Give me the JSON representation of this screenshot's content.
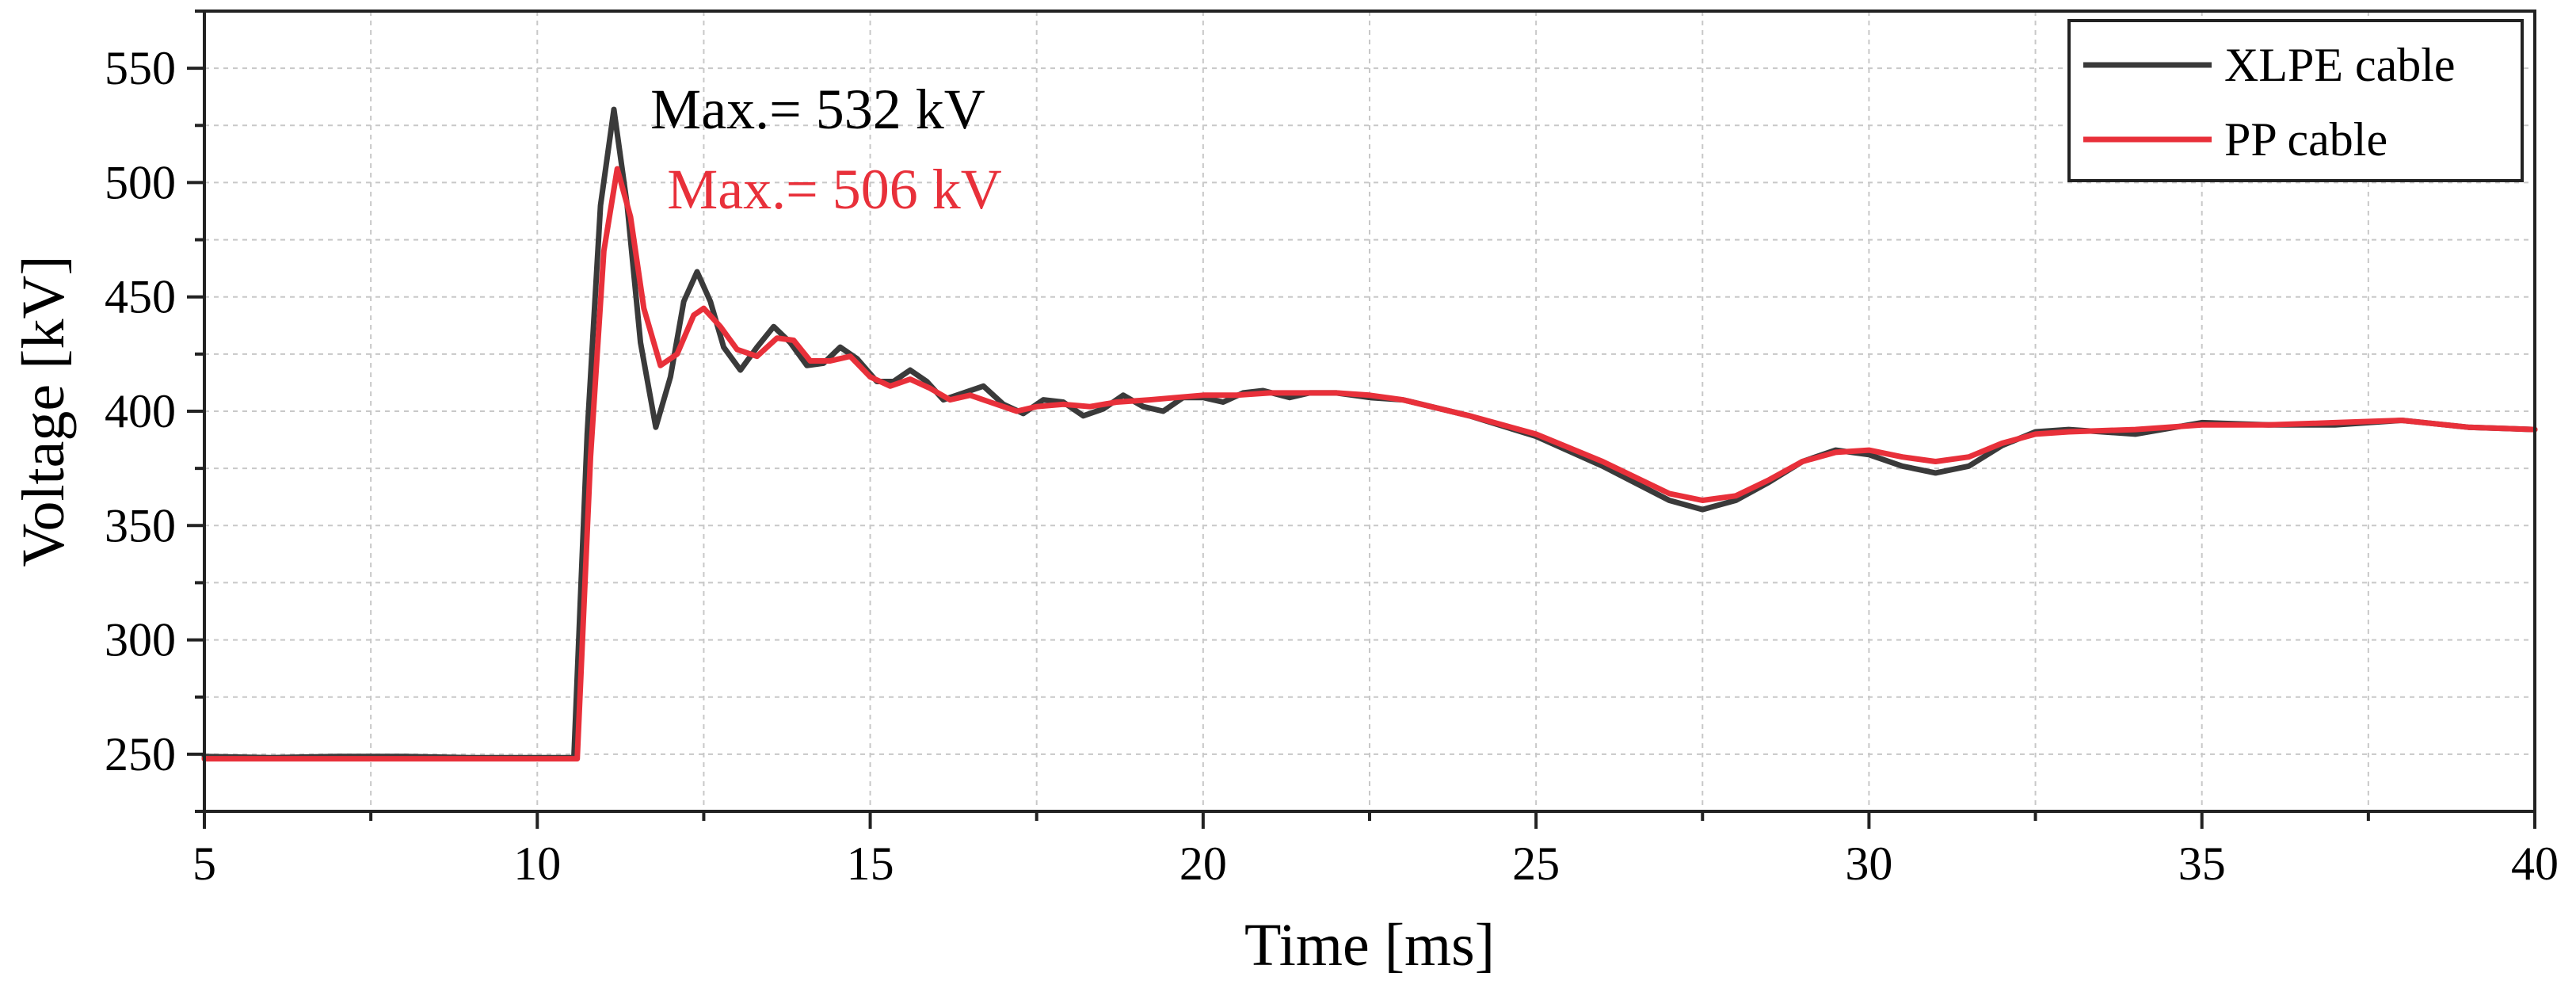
{
  "chart_data": {
    "type": "line",
    "xlabel": "Time [ms]",
    "ylabel": "Voltage [kV]",
    "xlim": [
      5,
      40
    ],
    "ylim": [
      225,
      575
    ],
    "xticks": [
      5,
      10,
      15,
      20,
      25,
      30,
      35,
      40
    ],
    "yticks": [
      250,
      300,
      350,
      400,
      450,
      500,
      550
    ],
    "xminor_step": 2.5,
    "yminor_step": 25,
    "grid": true,
    "legend": "top-right",
    "series": [
      {
        "name": "XLPE cable",
        "color": "#3a3a3a",
        "points": [
          [
            5,
            249
          ],
          [
            6,
            248.5
          ],
          [
            7,
            249
          ],
          [
            8,
            249
          ],
          [
            9,
            248.5
          ],
          [
            10,
            248.5
          ],
          [
            10.55,
            248.5
          ],
          [
            10.75,
            390
          ],
          [
            10.95,
            490
          ],
          [
            11.15,
            532
          ],
          [
            11.35,
            490
          ],
          [
            11.55,
            430
          ],
          [
            11.78,
            393
          ],
          [
            12.0,
            415
          ],
          [
            12.2,
            448
          ],
          [
            12.4,
            461
          ],
          [
            12.6,
            448
          ],
          [
            12.8,
            428
          ],
          [
            13.05,
            418
          ],
          [
            13.3,
            428
          ],
          [
            13.55,
            437
          ],
          [
            13.8,
            430
          ],
          [
            14.05,
            420
          ],
          [
            14.3,
            421
          ],
          [
            14.55,
            428
          ],
          [
            14.8,
            423
          ],
          [
            15.1,
            413
          ],
          [
            15.35,
            413
          ],
          [
            15.6,
            418
          ],
          [
            15.85,
            413
          ],
          [
            16.1,
            405
          ],
          [
            16.4,
            408
          ],
          [
            16.7,
            411
          ],
          [
            17.0,
            403
          ],
          [
            17.3,
            399
          ],
          [
            17.6,
            405
          ],
          [
            17.9,
            404
          ],
          [
            18.2,
            398
          ],
          [
            18.5,
            401
          ],
          [
            18.8,
            407
          ],
          [
            19.1,
            402
          ],
          [
            19.4,
            400
          ],
          [
            19.7,
            406
          ],
          [
            20.0,
            406
          ],
          [
            20.3,
            404
          ],
          [
            20.6,
            408
          ],
          [
            20.9,
            409
          ],
          [
            21.3,
            406
          ],
          [
            21.6,
            408
          ],
          [
            22.0,
            408
          ],
          [
            22.5,
            406
          ],
          [
            23.0,
            405
          ],
          [
            24.0,
            398
          ],
          [
            25.0,
            389
          ],
          [
            26.0,
            376
          ],
          [
            27.0,
            361
          ],
          [
            27.5,
            357
          ],
          [
            28.0,
            361
          ],
          [
            28.5,
            369
          ],
          [
            29.0,
            378
          ],
          [
            29.5,
            383
          ],
          [
            30.0,
            381
          ],
          [
            30.5,
            376
          ],
          [
            31.0,
            373
          ],
          [
            31.5,
            376
          ],
          [
            32.0,
            385
          ],
          [
            32.5,
            391
          ],
          [
            33.0,
            392
          ],
          [
            34.0,
            390
          ],
          [
            35.0,
            395
          ],
          [
            36.0,
            394
          ],
          [
            37.0,
            394
          ],
          [
            38.0,
            396
          ],
          [
            39.0,
            393
          ],
          [
            40.0,
            392
          ]
        ]
      },
      {
        "name": "PP cable",
        "color": "#e8303a",
        "points": [
          [
            5,
            248
          ],
          [
            6,
            248
          ],
          [
            7,
            248
          ],
          [
            8,
            248
          ],
          [
            9,
            248
          ],
          [
            10,
            248
          ],
          [
            10.6,
            248
          ],
          [
            10.8,
            380
          ],
          [
            11.0,
            470
          ],
          [
            11.2,
            506
          ],
          [
            11.4,
            485
          ],
          [
            11.6,
            445
          ],
          [
            11.85,
            420
          ],
          [
            12.1,
            425
          ],
          [
            12.35,
            442
          ],
          [
            12.5,
            445
          ],
          [
            12.75,
            437
          ],
          [
            13.0,
            427
          ],
          [
            13.3,
            424
          ],
          [
            13.6,
            432
          ],
          [
            13.85,
            431
          ],
          [
            14.1,
            422
          ],
          [
            14.4,
            422
          ],
          [
            14.7,
            424
          ],
          [
            15.0,
            415
          ],
          [
            15.3,
            411
          ],
          [
            15.6,
            414
          ],
          [
            15.9,
            410
          ],
          [
            16.2,
            405
          ],
          [
            16.5,
            407
          ],
          [
            16.8,
            404
          ],
          [
            17.2,
            400
          ],
          [
            17.5,
            402
          ],
          [
            17.9,
            403
          ],
          [
            18.3,
            402
          ],
          [
            18.7,
            404
          ],
          [
            19.2,
            405
          ],
          [
            19.6,
            406
          ],
          [
            20.0,
            407
          ],
          [
            20.5,
            407
          ],
          [
            21.0,
            408
          ],
          [
            21.5,
            408
          ],
          [
            22.0,
            408
          ],
          [
            22.5,
            407
          ],
          [
            23.0,
            405
          ],
          [
            24.0,
            398
          ],
          [
            25.0,
            390
          ],
          [
            26.0,
            378
          ],
          [
            27.0,
            364
          ],
          [
            27.5,
            361
          ],
          [
            28.0,
            363
          ],
          [
            28.5,
            370
          ],
          [
            29.0,
            378
          ],
          [
            29.5,
            382
          ],
          [
            30.0,
            383
          ],
          [
            30.5,
            380
          ],
          [
            31.0,
            378
          ],
          [
            31.5,
            380
          ],
          [
            32.0,
            386
          ],
          [
            32.5,
            390
          ],
          [
            33.0,
            391
          ],
          [
            34.0,
            392
          ],
          [
            35.0,
            394
          ],
          [
            36.0,
            394
          ],
          [
            37.0,
            395
          ],
          [
            38.0,
            396
          ],
          [
            39.0,
            393
          ],
          [
            40.0,
            392
          ]
        ]
      }
    ],
    "annotations": [
      {
        "text": "Max.= 532 kV",
        "x": 11.7,
        "y": 532,
        "color": "#000000"
      },
      {
        "text": "Max.= 506 kV",
        "x": 11.95,
        "y": 497,
        "color": "#e8303a"
      }
    ]
  }
}
